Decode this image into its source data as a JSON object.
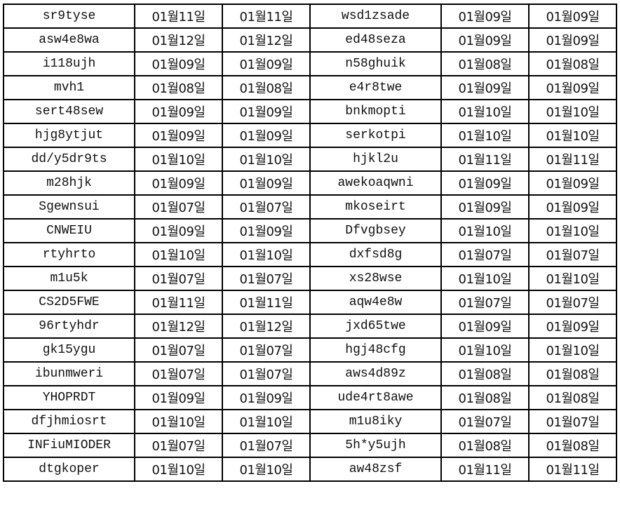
{
  "rows": [
    [
      "sr9tyse",
      "01월11일",
      "01월11일",
      "wsd1zsade",
      "01월09일",
      "01월09일"
    ],
    [
      "asw4e8wa",
      "01월12일",
      "01월12일",
      "ed48seza",
      "01월09일",
      "01월09일"
    ],
    [
      "i118ujh",
      "01월09일",
      "01월09일",
      "n58ghuik",
      "01월08일",
      "01월08일"
    ],
    [
      "mvh1",
      "01월08일",
      "01월08일",
      "e4r8twe",
      "01월09일",
      "01월09일"
    ],
    [
      "sert48sew",
      "01월09일",
      "01월09일",
      "bnkmopti",
      "01월10일",
      "01월10일"
    ],
    [
      "hjg8ytjut",
      "01월09일",
      "01월09일",
      "serkotpi",
      "01월10일",
      "01월10일"
    ],
    [
      "dd/y5dr9ts",
      "01월10일",
      "01월10일",
      "hjkl2u",
      "01월11일",
      "01월11일"
    ],
    [
      "m28hjk",
      "01월09일",
      "01월09일",
      "awekoaqwni",
      "01월09일",
      "01월09일"
    ],
    [
      "Sgewnsui",
      "01월07일",
      "01월07일",
      "mkoseirt",
      "01월09일",
      "01월09일"
    ],
    [
      "CNWEIU",
      "01월09일",
      "01월09일",
      "Dfvgbsey",
      "01월10일",
      "01월10일"
    ],
    [
      "rtyhrto",
      "01월10일",
      "01월10일",
      "dxfsd8g",
      "01월07일",
      "01월07일"
    ],
    [
      "m1u5k",
      "01월07일",
      "01월07일",
      "xs28wse",
      "01월10일",
      "01월10일"
    ],
    [
      "CS2D5FWE",
      "01월11일",
      "01월11일",
      "aqw4e8w",
      "01월07일",
      "01월07일"
    ],
    [
      "96rtyhdr",
      "01월12일",
      "01월12일",
      "jxd65twe",
      "01월09일",
      "01월09일"
    ],
    [
      "gk15ygu",
      "01월07일",
      "01월07일",
      "hgj48cfg",
      "01월10일",
      "01월10일"
    ],
    [
      "ibunmweri",
      "01월07일",
      "01월07일",
      "aws4d89z",
      "01월08일",
      "01월08일"
    ],
    [
      "YHOPRDT",
      "01월09일",
      "01월09일",
      "ude4rt8awe",
      "01월08일",
      "01월08일"
    ],
    [
      "dfjhmiosrt",
      "01월10일",
      "01월10일",
      "m1u8iky",
      "01월07일",
      "01월07일"
    ],
    [
      "INFiuMIODER",
      "01월07일",
      "01월07일",
      "5h*y5ujh",
      "01월08일",
      "01월08일"
    ],
    [
      "dtgkoper",
      "01월10일",
      "01월10일",
      "aw48zsf",
      "01월11일",
      "01월11일"
    ]
  ]
}
